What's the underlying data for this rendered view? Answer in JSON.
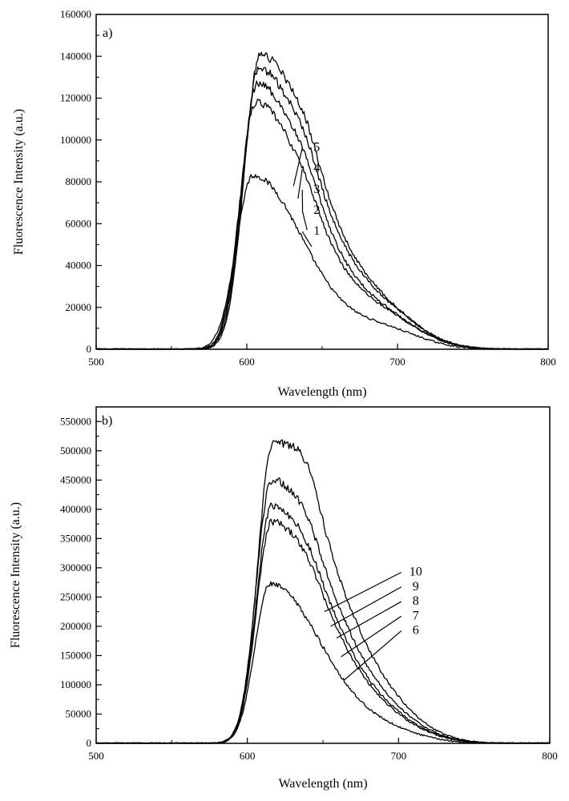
{
  "chart_data": [
    {
      "type": "line",
      "panel_label": "a)",
      "xlabel": "Wavelength (nm)",
      "ylabel": "Fluorescence Intensity (a.u.)",
      "xlim": [
        500,
        800
      ],
      "ylim": [
        0,
        160000
      ],
      "x_ticks": [
        500,
        600,
        700,
        800
      ],
      "x_tick_labels": [
        "500",
        "600",
        "700",
        "800"
      ],
      "y_ticks": [
        0,
        20000,
        40000,
        60000,
        80000,
        100000,
        120000,
        140000,
        160000
      ],
      "y_tick_labels": [
        "0",
        "20000",
        "40000",
        "60000",
        "80000",
        "100000",
        "120000",
        "140000",
        "160000"
      ],
      "grid": false,
      "series": [
        {
          "name": "1",
          "peak": 83000,
          "peak_x": 604,
          "sigma_left": 11,
          "sigma_right": 34,
          "shoulder": 0,
          "tail": 9000
        },
        {
          "name": "2",
          "peak": 118000,
          "peak_x": 606,
          "sigma_left": 10.5,
          "sigma_right": 36,
          "shoulder": 4000,
          "tail": 13000
        },
        {
          "name": "3",
          "peak": 127000,
          "peak_x": 607,
          "sigma_left": 10.5,
          "sigma_right": 36,
          "shoulder": 5000,
          "tail": 13000
        },
        {
          "name": "4",
          "peak": 134000,
          "peak_x": 608,
          "sigma_left": 10.5,
          "sigma_right": 37,
          "shoulder": 6000,
          "tail": 14000
        },
        {
          "name": "5",
          "peak": 141000,
          "peak_x": 609,
          "sigma_left": 10.5,
          "sigma_right": 37,
          "shoulder": 7000,
          "tail": 14000
        }
      ],
      "annotations": [
        {
          "text": "5",
          "x": 640,
          "y": 97000,
          "target_x": 631,
          "target_y": 78000
        },
        {
          "text": "4",
          "x": 640,
          "y": 87000,
          "target_x": 634,
          "target_y": 72000
        },
        {
          "text": "3",
          "x": 640,
          "y": 77000,
          "target_x": 637,
          "target_y": 66000
        },
        {
          "text": "2",
          "x": 640,
          "y": 67000,
          "target_x": 640,
          "target_y": 57000
        },
        {
          "text": "1",
          "x": 640,
          "y": 57000,
          "target_x": 643,
          "target_y": 49000
        }
      ]
    },
    {
      "type": "line",
      "panel_label": "b)",
      "xlabel": "Wavelength (nm)",
      "ylabel": "Fluorescence Intensity (a.u.)",
      "xlim": [
        500,
        800
      ],
      "ylim": [
        0,
        575000
      ],
      "x_ticks": [
        500,
        600,
        700,
        800
      ],
      "x_tick_labels": [
        "500",
        "600",
        "700",
        "800"
      ],
      "y_ticks": [
        0,
        50000,
        100000,
        150000,
        200000,
        250000,
        300000,
        350000,
        400000,
        450000,
        500000,
        550000
      ],
      "y_tick_labels": [
        "0",
        "50000",
        "100000",
        "150000",
        "200000",
        "250000",
        "300000",
        "350000",
        "400000",
        "450000",
        "500000",
        "550000"
      ],
      "grid": false,
      "series": [
        {
          "name": "6",
          "peak": 272000,
          "peak_x": 615,
          "sigma_left": 10,
          "sigma_right": 34,
          "shoulder": 0,
          "tail": 18000
        },
        {
          "name": "7",
          "peak": 378000,
          "peak_x": 616,
          "sigma_left": 10,
          "sigma_right": 36,
          "shoulder": 10000,
          "tail": 28000
        },
        {
          "name": "8",
          "peak": 405000,
          "peak_x": 616,
          "sigma_left": 10,
          "sigma_right": 36,
          "shoulder": 12000,
          "tail": 30000
        },
        {
          "name": "9",
          "peak": 450000,
          "peak_x": 616,
          "sigma_left": 10,
          "sigma_right": 37,
          "shoulder": 16000,
          "tail": 32000
        },
        {
          "name": "10",
          "peak": 515000,
          "peak_x": 617,
          "sigma_left": 10,
          "sigma_right": 38,
          "shoulder": 40000,
          "tail": 35000
        }
      ],
      "annotations": [
        {
          "text": "10",
          "x": 705,
          "y": 295000,
          "target_x": 651,
          "target_y": 225000
        },
        {
          "text": "9",
          "x": 705,
          "y": 270000,
          "target_x": 655,
          "target_y": 200000
        },
        {
          "text": "8",
          "x": 705,
          "y": 245000,
          "target_x": 659,
          "target_y": 180000
        },
        {
          "text": "7",
          "x": 705,
          "y": 220000,
          "target_x": 662,
          "target_y": 148000
        },
        {
          "text": "6",
          "x": 705,
          "y": 195000,
          "target_x": 664,
          "target_y": 108000
        }
      ]
    }
  ]
}
